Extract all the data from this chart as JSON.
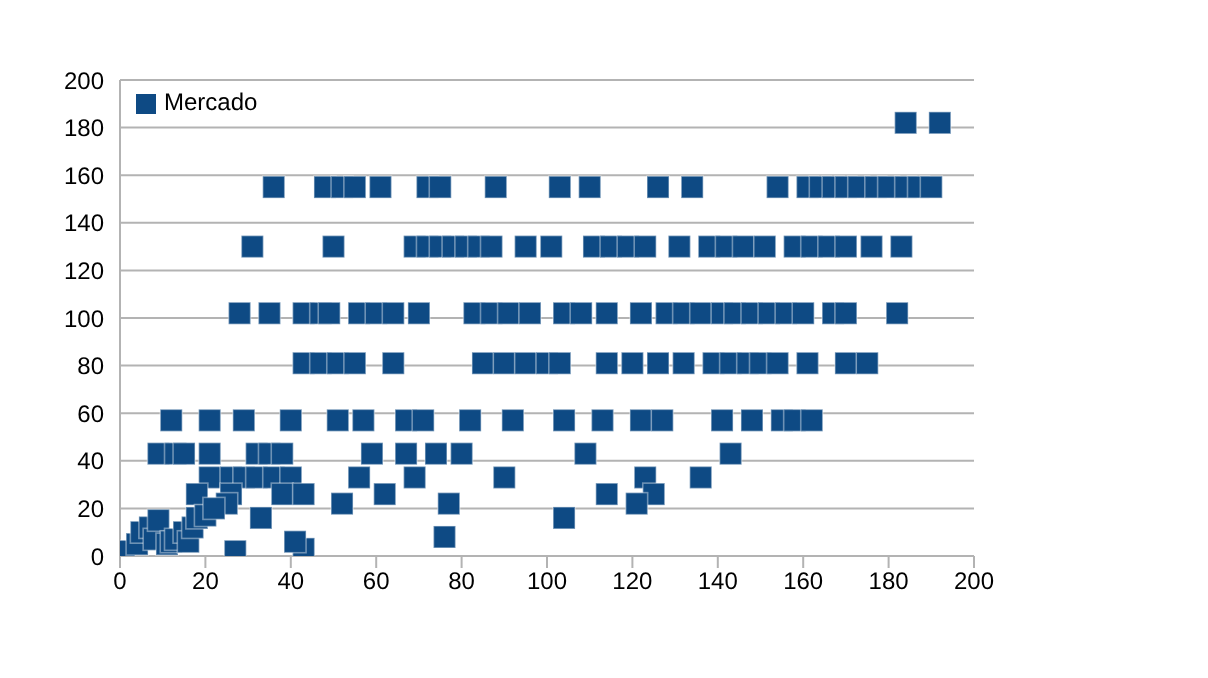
{
  "chart_data": {
    "type": "scatter",
    "legend": "top left",
    "grid": "y",
    "marker": "square",
    "xlim": [
      0,
      200
    ],
    "xticks": [
      0,
      20,
      40,
      60,
      80,
      100,
      120,
      140,
      160,
      180,
      200
    ],
    "ylim": [
      0,
      200
    ],
    "yticks": [
      0,
      20,
      40,
      60,
      80,
      100,
      120,
      140,
      160,
      180,
      200
    ],
    "series": [
      {
        "name": "Mercado",
        "color": "#0e4a84",
        "x": [
          184,
          192,
          36,
          48,
          52,
          55,
          61,
          72,
          75,
          88,
          103,
          110,
          126,
          134,
          154,
          161,
          164,
          167,
          170,
          173,
          177,
          180,
          184,
          187,
          190,
          31,
          50,
          69,
          72,
          75,
          78,
          81,
          84,
          87,
          95,
          101,
          111,
          115,
          119,
          123,
          131,
          138,
          142,
          146,
          151,
          158,
          162,
          166,
          170,
          176,
          183,
          28,
          35,
          43,
          47,
          49,
          56,
          60,
          64,
          70,
          83,
          87,
          91,
          96,
          104,
          108,
          114,
          122,
          128,
          132,
          136,
          141,
          144,
          148,
          152,
          156,
          160,
          167,
          170,
          182,
          43,
          47,
          51,
          55,
          64,
          85,
          90,
          95,
          100,
          103,
          114,
          120,
          126,
          132,
          139,
          143,
          147,
          150,
          154,
          161,
          170,
          175,
          12,
          21,
          29,
          40,
          51,
          57,
          67,
          71,
          82,
          92,
          104,
          113,
          122,
          127,
          141,
          148,
          155,
          158,
          162,
          9,
          13,
          15,
          21,
          32,
          35,
          38,
          59,
          67,
          74,
          80,
          109,
          143,
          21,
          26,
          29,
          32,
          36,
          40,
          56,
          69,
          90,
          123,
          136,
          18,
          26,
          38,
          43,
          62,
          114,
          125,
          25,
          52,
          77,
          121,
          33,
          104,
          76,
          27,
          43,
          41,
          1,
          4,
          5,
          7,
          8,
          9,
          11,
          12,
          13,
          15,
          16,
          17,
          18,
          20,
          22
        ],
        "values": [
          182,
          182,
          155,
          155,
          155,
          155,
          155,
          155,
          155,
          155,
          155,
          155,
          155,
          155,
          155,
          155,
          155,
          155,
          155,
          155,
          155,
          155,
          155,
          155,
          155,
          130,
          130,
          130,
          130,
          130,
          130,
          130,
          130,
          130,
          130,
          130,
          130,
          130,
          130,
          130,
          130,
          130,
          130,
          130,
          130,
          130,
          130,
          130,
          130,
          130,
          130,
          102,
          102,
          102,
          102,
          102,
          102,
          102,
          102,
          102,
          102,
          102,
          102,
          102,
          102,
          102,
          102,
          102,
          102,
          102,
          102,
          102,
          102,
          102,
          102,
          102,
          102,
          102,
          102,
          102,
          81,
          81,
          81,
          81,
          81,
          81,
          81,
          81,
          81,
          81,
          81,
          81,
          81,
          81,
          81,
          81,
          81,
          81,
          81,
          81,
          81,
          81,
          57,
          57,
          57,
          57,
          57,
          57,
          57,
          57,
          57,
          57,
          57,
          57,
          57,
          57,
          57,
          57,
          57,
          57,
          57,
          43,
          43,
          43,
          43,
          43,
          43,
          43,
          43,
          43,
          43,
          43,
          43,
          43,
          33,
          33,
          33,
          33,
          33,
          33,
          33,
          33,
          33,
          33,
          33,
          26,
          26,
          26,
          26,
          26,
          26,
          26,
          22,
          22,
          22,
          22,
          16,
          16,
          8,
          2,
          3,
          6,
          2,
          5,
          10,
          12,
          7,
          15,
          5,
          6,
          7,
          10,
          6,
          12,
          16,
          17,
          20
        ]
      }
    ]
  }
}
